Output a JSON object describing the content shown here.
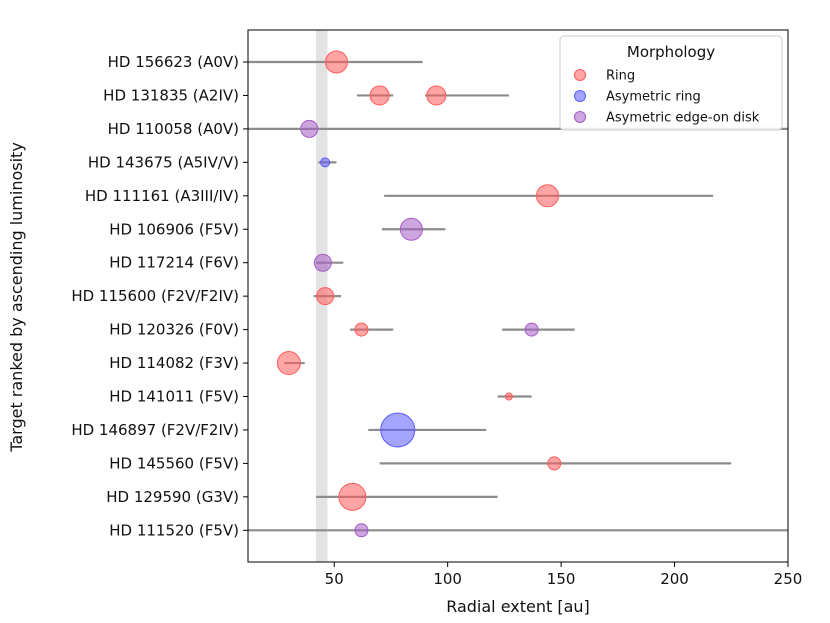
{
  "chart_data": {
    "type": "scatter",
    "xlabel": "Radial extent [au]",
    "ylabel": "Target ranked by ascending luminosity",
    "xlim": [
      12,
      250
    ],
    "xticks": [
      50,
      100,
      150,
      200,
      250
    ],
    "shaded_band": [
      42,
      47
    ],
    "targets": [
      "HD 156623 (A0V)",
      "HD 131835 (A2IV)",
      "HD 110058 (A0V)",
      "HD 143675 (A5IV/V)",
      "HD 111161 (A3III/IV)",
      "HD 106906 (F5V)",
      "HD 117214 (F6V)",
      "HD 115600 (F2V/F2IV)",
      "HD 120326 (F0V)",
      "HD 114082 (F3V)",
      "HD 141011 (F5V)",
      "HD 146897 (F2V/F2IV)",
      "HD 145560 (F5V)",
      "HD 129590 (G3V)",
      "HD 111520 (F5V)"
    ],
    "legend": {
      "title": "Morphology",
      "placement": "top-right",
      "entries": [
        {
          "label": "Ring",
          "morphology": "ring"
        },
        {
          "label": "Asymetric ring",
          "morphology": "asym_ring"
        },
        {
          "label": "Asymetric edge-on disk",
          "morphology": "asym_edge"
        }
      ]
    },
    "colors": {
      "ring": "#ff5b5b",
      "asym_ring": "#5b5bff",
      "asym_edge": "#a45bc4",
      "extent_line": "#8c8c8c",
      "band": "#d9d9d9"
    },
    "points": [
      {
        "target": 0,
        "morphology": "ring",
        "x": 51,
        "xmin": 12,
        "xmax": 89,
        "size": 11
      },
      {
        "target": 1,
        "morphology": "ring",
        "x": 70,
        "xmin": 60,
        "xmax": 76,
        "size": 9.5
      },
      {
        "target": 1,
        "morphology": "ring",
        "x": 95,
        "xmin": 90,
        "xmax": 127,
        "size": 9.5
      },
      {
        "target": 2,
        "morphology": "asym_edge",
        "x": 39,
        "xmin": 12,
        "xmax": 250,
        "size": 8.5
      },
      {
        "target": 3,
        "morphology": "asym_ring",
        "x": 46,
        "xmin": 43,
        "xmax": 51,
        "size": 4.5
      },
      {
        "target": 4,
        "morphology": "ring",
        "x": 144,
        "xmin": 72,
        "xmax": 217,
        "size": 11
      },
      {
        "target": 5,
        "morphology": "asym_edge",
        "x": 84,
        "xmin": 71,
        "xmax": 99,
        "size": 11
      },
      {
        "target": 6,
        "morphology": "asym_edge",
        "x": 45,
        "xmin": 42,
        "xmax": 54,
        "size": 8.5
      },
      {
        "target": 7,
        "morphology": "ring",
        "x": 46,
        "xmin": 41,
        "xmax": 53,
        "size": 8.5
      },
      {
        "target": 8,
        "morphology": "ring",
        "x": 62,
        "xmin": 57,
        "xmax": 76,
        "size": 6.5
      },
      {
        "target": 8,
        "morphology": "asym_edge",
        "x": 137,
        "xmin": 124,
        "xmax": 156,
        "size": 6.5
      },
      {
        "target": 9,
        "morphology": "ring",
        "x": 30,
        "xmin": 28,
        "xmax": 37,
        "size": 11.5
      },
      {
        "target": 10,
        "morphology": "ring",
        "x": 127,
        "xmin": 122,
        "xmax": 137,
        "size": 3.5
      },
      {
        "target": 11,
        "morphology": "asym_ring",
        "x": 78,
        "xmin": 65,
        "xmax": 117,
        "size": 17
      },
      {
        "target": 12,
        "morphology": "ring",
        "x": 147,
        "xmin": 70,
        "xmax": 225,
        "size": 6.5
      },
      {
        "target": 13,
        "morphology": "ring",
        "x": 58,
        "xmin": 42,
        "xmax": 122,
        "size": 13.5
      },
      {
        "target": 14,
        "morphology": "asym_edge",
        "x": 62,
        "xmin": 12,
        "xmax": 250,
        "size": 6.5
      }
    ]
  }
}
